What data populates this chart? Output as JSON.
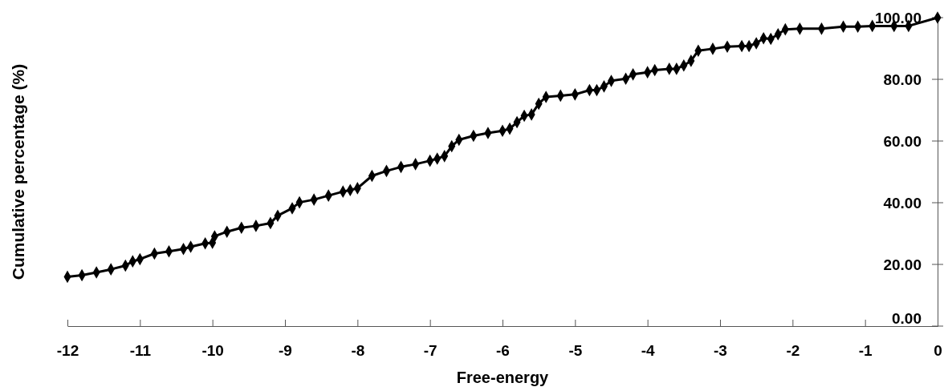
{
  "chart_data": {
    "type": "line",
    "xlabel": "Free-energy",
    "ylabel": "Cumulative percentage (%)",
    "marker": "diamond",
    "line_style": "solid",
    "grid": false,
    "xlim": [
      -12,
      0
    ],
    "xticks": [
      -12,
      -11,
      -10,
      -9,
      -8,
      -7,
      -6,
      -5,
      -4,
      -3,
      -2,
      -1,
      0
    ],
    "ylim": [
      0,
      100
    ],
    "yticks": [
      {
        "value": 0,
        "label": "0.00"
      },
      {
        "value": 20,
        "label": "20.00"
      },
      {
        "value": 40,
        "label": "40.00"
      },
      {
        "value": 60,
        "label": "60.00"
      },
      {
        "value": 80,
        "label": "80.00"
      },
      {
        "value": 100,
        "label": "100.00"
      }
    ],
    "series": [
      {
        "color": "#000000",
        "x": [
          -12.0,
          -11.8,
          -11.6,
          -11.4,
          -11.2,
          -11.1,
          -11.0,
          -10.8,
          -10.6,
          -10.4,
          -10.3,
          -10.1,
          -10.0,
          -9.97,
          -9.8,
          -9.6,
          -9.4,
          -9.2,
          -9.1,
          -8.9,
          -8.8,
          -8.6,
          -8.4,
          -8.2,
          -8.1,
          -8.0,
          -7.8,
          -7.6,
          -7.4,
          -7.2,
          -7.0,
          -6.9,
          -6.8,
          -6.7,
          -6.6,
          -6.4,
          -6.2,
          -6.0,
          -5.9,
          -5.8,
          -5.7,
          -5.6,
          -5.5,
          -5.4,
          -5.2,
          -5.0,
          -4.8,
          -4.7,
          -4.6,
          -4.5,
          -4.3,
          -4.2,
          -4.0,
          -3.9,
          -3.7,
          -3.6,
          -3.5,
          -3.4,
          -3.3,
          -3.1,
          -2.9,
          -2.7,
          -2.6,
          -2.5,
          -2.4,
          -2.3,
          -2.2,
          -2.1,
          -1.9,
          -1.6,
          -1.3,
          -1.1,
          -0.9,
          -0.6,
          -0.4,
          0
        ],
        "values": [
          16.0,
          16.5,
          17.4,
          18.4,
          19.6,
          21.0,
          21.7,
          23.5,
          24.2,
          25.0,
          25.7,
          26.8,
          27.0,
          29.1,
          30.6,
          31.9,
          32.5,
          33.4,
          35.8,
          38.2,
          40.1,
          41.0,
          42.3,
          43.6,
          44.1,
          44.7,
          48.7,
          50.3,
          51.6,
          52.5,
          53.6,
          54.3,
          55.1,
          58.3,
          60.4,
          61.7,
          62.6,
          63.3,
          64.0,
          66.1,
          68.2,
          68.6,
          72.1,
          74.3,
          74.7,
          75.1,
          76.5,
          76.5,
          77.7,
          79.5,
          80.2,
          81.6,
          82.3,
          83.0,
          83.4,
          83.4,
          84.5,
          86.0,
          89.3,
          89.9,
          90.6,
          90.8,
          90.8,
          91.7,
          93.3,
          93.1,
          94.6,
          96.2,
          96.4,
          96.4,
          97.1,
          97.1,
          97.3,
          97.3,
          97.3,
          100
        ]
      }
    ]
  }
}
